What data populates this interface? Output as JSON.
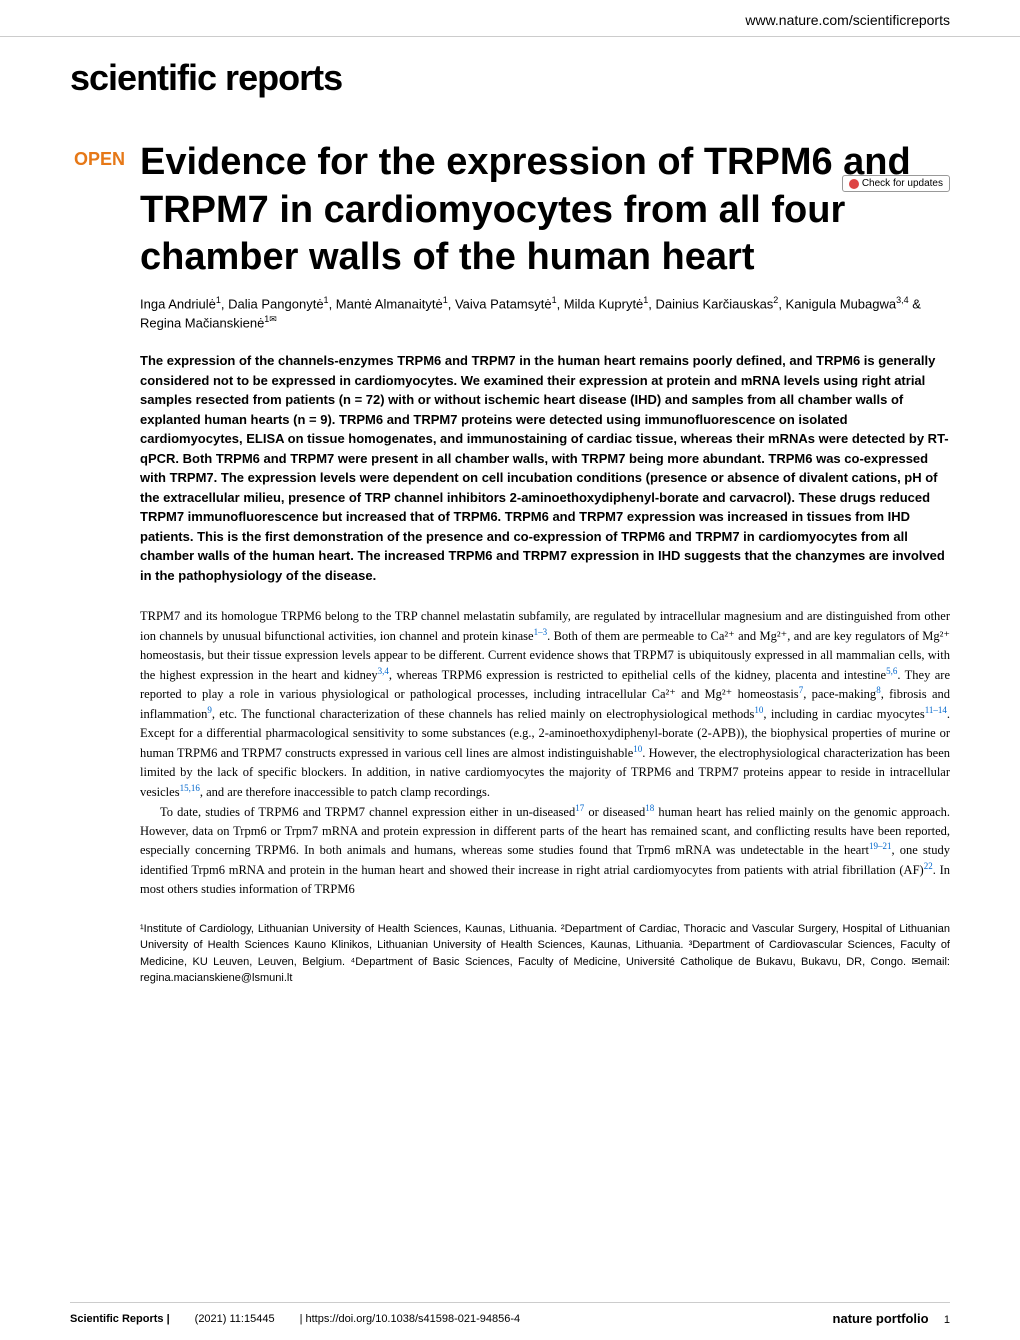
{
  "header": {
    "url": "www.nature.com/scientificreports",
    "journal_logo": "scientific reports",
    "updates_badge": "Check for updates"
  },
  "article": {
    "open_label": "OPEN",
    "title": "Evidence for the expression of TRPM6 and TRPM7 in cardiomyocytes from all four chamber walls of the human heart",
    "authors_html": "Inga Andriulė<sup>1</sup>, Dalia Pangonytė<sup>1</sup>, Mantė Almanaitytė<sup>1</sup>, Vaiva Patamsytė<sup>1</sup>, Milda Kuprytė<sup>1</sup>, Dainius Karčiauskas<sup>2</sup>, Kanigula Mubagwa<sup>3,4</sup> & Regina Mačianskienė<sup>1✉</sup>",
    "abstract": "The expression of the channels-enzymes TRPM6 and TRPM7 in the human heart remains poorly defined, and TRPM6 is generally considered not to be expressed in cardiomyocytes. We examined their expression at protein and mRNA levels using right atrial samples resected from patients (n = 72) with or without ischemic heart disease (IHD) and samples from all chamber walls of explanted human hearts (n = 9). TRPM6 and TRPM7 proteins were detected using immunofluorescence on isolated cardiomyocytes, ELISA on tissue homogenates, and immunostaining of cardiac tissue, whereas their mRNAs were detected by RT-qPCR. Both TRPM6 and TRPM7 were present in all chamber walls, with TRPM7 being more abundant. TRPM6 was co-expressed with TRPM7. The expression levels were dependent on cell incubation conditions (presence or absence of divalent cations, pH of the extracellular milieu, presence of TRP channel inhibitors 2-aminoethoxydiphenyl-borate and carvacrol). These drugs reduced TRPM7 immunofluorescence but increased that of TRPM6. TRPM6 and TRPM7 expression was increased in tissues from IHD patients. This is the first demonstration of the presence and co-expression of TRPM6 and TRPM7 in cardiomyocytes from all chamber walls of the human heart. The increased TRPM6 and TRPM7 expression in IHD suggests that the chanzymes are involved in the pathophysiology of the disease.",
    "paragraph1_pre": "TRPM7 and its homologue TRPM6 belong to the TRP channel melastatin subfamily, are regulated by intracellular magnesium and are distinguished from other ion channels by unusual bifunctional activities, ion channel and protein kinase",
    "ref1": "1–3",
    "paragraph1_mid1": ". Both of them are permeable to Ca²⁺ and Mg²⁺, and are key regulators of Mg²⁺ homeostasis, but their tissue expression levels appear to be different. Current evidence shows that TRPM7 is ubiquitously expressed in all mammalian cells, with the highest expression in the heart and kidney",
    "ref2": "3,4",
    "paragraph1_mid2": ", whereas TRPM6 expression is restricted to epithelial cells of the kidney, placenta and intestine",
    "ref3": "5,6",
    "paragraph1_mid3": ". They are reported to play a role in various physiological or pathological processes, including intracellular Ca²⁺ and Mg²⁺ homeostasis",
    "ref4": "7",
    "paragraph1_mid4": ", pace-making",
    "ref5": "8",
    "paragraph1_mid5": ", fibrosis and inflammation",
    "ref6": "9",
    "paragraph1_mid6": ", etc. The functional characterization of these channels has relied mainly on electrophysiological methods",
    "ref7": "10",
    "paragraph1_mid7": ", including in cardiac myocytes",
    "ref8": "11–14",
    "paragraph1_mid8": ". Except for a differential pharmacological sensitivity to some substances (e.g., 2-aminoethoxydiphenyl-borate (2-APB)), the biophysical properties of murine or human TRPM6 and TRPM7 constructs expressed in various cell lines are almost indistinguishable",
    "ref9": "10",
    "paragraph1_mid9": ". However, the electrophysiological characterization has been limited by the lack of specific blockers. In addition, in native cardiomyocytes the majority of TRPM6 and TRPM7 proteins appear to reside in intracellular vesicles",
    "ref10": "15,16",
    "paragraph1_end": ", and are therefore inaccessible to patch clamp recordings.",
    "paragraph2_pre": "To date, studies of TRPM6 and TRPM7 channel expression either in un-diseased",
    "ref11": "17",
    "paragraph2_mid1": " or diseased",
    "ref12": "18",
    "paragraph2_mid2": " human heart has relied mainly on the genomic approach. However, data on Trpm6 or Trpm7 mRNA and protein expression in different parts of the heart has remained scant, and conflicting results have been reported, especially concerning TRPM6. In both animals and humans, whereas some studies found that Trpm6 mRNA was undetectable in the heart",
    "ref13": "19–21",
    "paragraph2_mid3": ", one study identified Trpm6 mRNA and protein in the human heart and showed their increase in right atrial cardiomyocytes from patients with atrial fibrillation (AF)",
    "ref14": "22",
    "paragraph2_end": ". In most others studies information of TRPM6",
    "affiliations": "¹Institute of Cardiology, Lithuanian University of Health Sciences, Kaunas, Lithuania. ²Department of Cardiac, Thoracic and Vascular Surgery, Hospital of Lithuanian University of Health Sciences Kauno Klinikos, Lithuanian University of Health Sciences, Kaunas, Lithuania. ³Department of Cardiovascular Sciences, Faculty of Medicine, KU Leuven, Leuven, Belgium. ⁴Department of Basic Sciences, Faculty of Medicine, Université Catholique de Bukavu, Bukavu, DR, Congo. ✉email: regina.macianskiene@lsmuni.lt"
  },
  "footer": {
    "journal": "Scientific Reports |",
    "citation": "(2021) 11:15445",
    "doi": "| https://doi.org/10.1038/s41598-021-94856-4",
    "publisher": "nature portfolio",
    "page": "1"
  }
}
